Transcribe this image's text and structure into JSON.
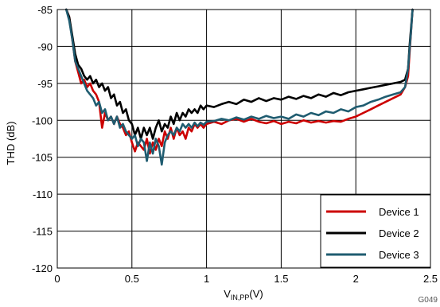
{
  "chart_data": {
    "type": "line",
    "xlabel_main": "V",
    "xlabel_sub": "IN,PP",
    "xlabel_unit": "(V)",
    "ylabel": "THD (dB)",
    "figure_code": "G049",
    "xlim": [
      0,
      2.5
    ],
    "ylim": [
      -120,
      -85
    ],
    "x_ticks": [
      0,
      0.5,
      1,
      1.5,
      2,
      2.5
    ],
    "y_ticks": [
      -85,
      -90,
      -95,
      -100,
      -105,
      -110,
      -115,
      -120
    ],
    "x_tick_labels": [
      "0",
      "0.5",
      "1",
      "1.5",
      "2",
      "2.5"
    ],
    "y_tick_labels": [
      "-85",
      "-90",
      "-95",
      "-100",
      "-105",
      "-110",
      "-115",
      "-120"
    ],
    "grid": true,
    "legend_position": "bottom-right",
    "series": [
      {
        "name": "Device 1",
        "color": "#cc0000",
        "points": [
          [
            0.06,
            -85
          ],
          [
            0.08,
            -86
          ],
          [
            0.1,
            -89
          ],
          [
            0.12,
            -92
          ],
          [
            0.14,
            -93.5
          ],
          [
            0.16,
            -95
          ],
          [
            0.18,
            -94.5
          ],
          [
            0.2,
            -95.5
          ],
          [
            0.22,
            -95
          ],
          [
            0.24,
            -96
          ],
          [
            0.26,
            -96.5
          ],
          [
            0.28,
            -97.5
          ],
          [
            0.3,
            -101
          ],
          [
            0.32,
            -99
          ],
          [
            0.34,
            -100
          ],
          [
            0.36,
            -99.5
          ],
          [
            0.38,
            -100.5
          ],
          [
            0.4,
            -99.5
          ],
          [
            0.42,
            -100.5
          ],
          [
            0.44,
            -101
          ],
          [
            0.46,
            -102
          ],
          [
            0.48,
            -101.5
          ],
          [
            0.5,
            -103
          ],
          [
            0.52,
            -104.2
          ],
          [
            0.54,
            -103
          ],
          [
            0.56,
            -103.5
          ],
          [
            0.58,
            -104
          ],
          [
            0.6,
            -102.5
          ],
          [
            0.62,
            -104.5
          ],
          [
            0.64,
            -103
          ],
          [
            0.66,
            -104
          ],
          [
            0.68,
            -102.5
          ],
          [
            0.7,
            -103.5
          ],
          [
            0.72,
            -101.5
          ],
          [
            0.74,
            -102.5
          ],
          [
            0.76,
            -101
          ],
          [
            0.78,
            -102.5
          ],
          [
            0.8,
            -101
          ],
          [
            0.82,
            -102
          ],
          [
            0.84,
            -101.5
          ],
          [
            0.86,
            -102.5
          ],
          [
            0.88,
            -101
          ],
          [
            0.9,
            -101.5
          ],
          [
            0.92,
            -100.5
          ],
          [
            0.94,
            -101
          ],
          [
            0.96,
            -100.5
          ],
          [
            0.98,
            -101
          ],
          [
            1,
            -100.5
          ],
          [
            1.05,
            -100.2
          ],
          [
            1.1,
            -100.5
          ],
          [
            1.15,
            -100
          ],
          [
            1.2,
            -99.8
          ],
          [
            1.25,
            -100.2
          ],
          [
            1.3,
            -99.8
          ],
          [
            1.35,
            -100.2
          ],
          [
            1.4,
            -100.4
          ],
          [
            1.45,
            -100.1
          ],
          [
            1.5,
            -100.5
          ],
          [
            1.55,
            -100.2
          ],
          [
            1.6,
            -100.4
          ],
          [
            1.65,
            -100
          ],
          [
            1.7,
            -100.3
          ],
          [
            1.75,
            -100.1
          ],
          [
            1.8,
            -100.3
          ],
          [
            1.85,
            -100.1
          ],
          [
            1.9,
            -100.2
          ],
          [
            1.95,
            -99.8
          ],
          [
            2,
            -99.5
          ],
          [
            2.05,
            -99
          ],
          [
            2.1,
            -98.5
          ],
          [
            2.15,
            -98
          ],
          [
            2.2,
            -97.5
          ],
          [
            2.25,
            -97
          ],
          [
            2.3,
            -96.5
          ],
          [
            2.33,
            -95.5
          ],
          [
            2.35,
            -94
          ],
          [
            2.36,
            -91
          ],
          [
            2.37,
            -88
          ],
          [
            2.38,
            -85
          ]
        ]
      },
      {
        "name": "Device 2",
        "color": "#000000",
        "points": [
          [
            0.06,
            -85
          ],
          [
            0.08,
            -86
          ],
          [
            0.1,
            -88.5
          ],
          [
            0.12,
            -91
          ],
          [
            0.14,
            -92.5
          ],
          [
            0.16,
            -93
          ],
          [
            0.18,
            -94
          ],
          [
            0.2,
            -94.5
          ],
          [
            0.22,
            -94
          ],
          [
            0.24,
            -95
          ],
          [
            0.26,
            -94.5
          ],
          [
            0.28,
            -95.5
          ],
          [
            0.3,
            -95
          ],
          [
            0.32,
            -96
          ],
          [
            0.34,
            -95.5
          ],
          [
            0.36,
            -97
          ],
          [
            0.38,
            -96.5
          ],
          [
            0.4,
            -98
          ],
          [
            0.42,
            -97.5
          ],
          [
            0.44,
            -99
          ],
          [
            0.46,
            -98.5
          ],
          [
            0.48,
            -100
          ],
          [
            0.5,
            -100.5
          ],
          [
            0.52,
            -102
          ],
          [
            0.54,
            -101
          ],
          [
            0.56,
            -102.5
          ],
          [
            0.58,
            -101
          ],
          [
            0.6,
            -102
          ],
          [
            0.62,
            -101
          ],
          [
            0.64,
            -102.5
          ],
          [
            0.66,
            -101
          ],
          [
            0.68,
            -100
          ],
          [
            0.7,
            -101.5
          ],
          [
            0.72,
            -100.5
          ],
          [
            0.74,
            -101
          ],
          [
            0.76,
            -99.5
          ],
          [
            0.78,
            -100.5
          ],
          [
            0.8,
            -99
          ],
          [
            0.82,
            -100
          ],
          [
            0.84,
            -99
          ],
          [
            0.86,
            -99.5
          ],
          [
            0.88,
            -98.5
          ],
          [
            0.9,
            -99
          ],
          [
            0.92,
            -98.5
          ],
          [
            0.94,
            -99
          ],
          [
            0.96,
            -98
          ],
          [
            0.98,
            -98.5
          ],
          [
            1,
            -98
          ],
          [
            1.05,
            -98.2
          ],
          [
            1.1,
            -97.8
          ],
          [
            1.15,
            -97.5
          ],
          [
            1.2,
            -97.8
          ],
          [
            1.25,
            -97.2
          ],
          [
            1.3,
            -97.5
          ],
          [
            1.35,
            -97
          ],
          [
            1.4,
            -97.4
          ],
          [
            1.45,
            -97
          ],
          [
            1.5,
            -97.2
          ],
          [
            1.55,
            -96.8
          ],
          [
            1.6,
            -97.1
          ],
          [
            1.65,
            -96.7
          ],
          [
            1.7,
            -97
          ],
          [
            1.75,
            -96.5
          ],
          [
            1.8,
            -96.8
          ],
          [
            1.85,
            -96.3
          ],
          [
            1.9,
            -96.6
          ],
          [
            1.95,
            -96.2
          ],
          [
            2,
            -96
          ],
          [
            2.05,
            -95.8
          ],
          [
            2.1,
            -95.6
          ],
          [
            2.15,
            -95.4
          ],
          [
            2.2,
            -95.2
          ],
          [
            2.25,
            -95
          ],
          [
            2.3,
            -94.8
          ],
          [
            2.33,
            -94.5
          ],
          [
            2.35,
            -93
          ],
          [
            2.36,
            -90
          ],
          [
            2.37,
            -87.5
          ],
          [
            2.38,
            -85
          ]
        ]
      },
      {
        "name": "Device 3",
        "color": "#1f5c70",
        "points": [
          [
            0.06,
            -85
          ],
          [
            0.08,
            -86.5
          ],
          [
            0.1,
            -89
          ],
          [
            0.12,
            -92
          ],
          [
            0.14,
            -93
          ],
          [
            0.16,
            -94
          ],
          [
            0.18,
            -95
          ],
          [
            0.2,
            -96
          ],
          [
            0.22,
            -96.5
          ],
          [
            0.24,
            -97
          ],
          [
            0.26,
            -98
          ],
          [
            0.28,
            -97.5
          ],
          [
            0.3,
            -99
          ],
          [
            0.32,
            -98.5
          ],
          [
            0.34,
            -100
          ],
          [
            0.36,
            -99.5
          ],
          [
            0.38,
            -100.5
          ],
          [
            0.4,
            -99.5
          ],
          [
            0.42,
            -101
          ],
          [
            0.44,
            -100.5
          ],
          [
            0.46,
            -101.5
          ],
          [
            0.48,
            -102
          ],
          [
            0.5,
            -102.5
          ],
          [
            0.52,
            -102
          ],
          [
            0.54,
            -103.5
          ],
          [
            0.56,
            -102.5
          ],
          [
            0.58,
            -103
          ],
          [
            0.6,
            -105.5
          ],
          [
            0.62,
            -103
          ],
          [
            0.64,
            -104.5
          ],
          [
            0.66,
            -102.5
          ],
          [
            0.68,
            -103.5
          ],
          [
            0.7,
            -106
          ],
          [
            0.72,
            -103
          ],
          [
            0.74,
            -102
          ],
          [
            0.76,
            -101.5
          ],
          [
            0.78,
            -102
          ],
          [
            0.8,
            -101
          ],
          [
            0.82,
            -101.5
          ],
          [
            0.84,
            -100.5
          ],
          [
            0.86,
            -101
          ],
          [
            0.88,
            -100.5
          ],
          [
            0.9,
            -101
          ],
          [
            0.92,
            -100.3
          ],
          [
            0.94,
            -100.8
          ],
          [
            0.96,
            -100.3
          ],
          [
            0.98,
            -100.6
          ],
          [
            1,
            -100.2
          ],
          [
            1.05,
            -100.1
          ],
          [
            1.1,
            -99.8
          ],
          [
            1.15,
            -100
          ],
          [
            1.2,
            -99.6
          ],
          [
            1.25,
            -99.9
          ],
          [
            1.3,
            -99.5
          ],
          [
            1.35,
            -99.8
          ],
          [
            1.4,
            -99.4
          ],
          [
            1.45,
            -99.7
          ],
          [
            1.5,
            -99.5
          ],
          [
            1.55,
            -99.8
          ],
          [
            1.6,
            -99.2
          ],
          [
            1.65,
            -99.5
          ],
          [
            1.7,
            -99
          ],
          [
            1.75,
            -99.3
          ],
          [
            1.8,
            -98.8
          ],
          [
            1.85,
            -99
          ],
          [
            1.9,
            -98.5
          ],
          [
            1.95,
            -98.8
          ],
          [
            2,
            -98.2
          ],
          [
            2.05,
            -98
          ],
          [
            2.1,
            -97.5
          ],
          [
            2.15,
            -97.2
          ],
          [
            2.2,
            -96.8
          ],
          [
            2.25,
            -96.5
          ],
          [
            2.3,
            -96.2
          ],
          [
            2.33,
            -95.5
          ],
          [
            2.35,
            -93
          ],
          [
            2.36,
            -90.5
          ],
          [
            2.37,
            -88
          ],
          [
            2.38,
            -85
          ]
        ]
      }
    ]
  }
}
